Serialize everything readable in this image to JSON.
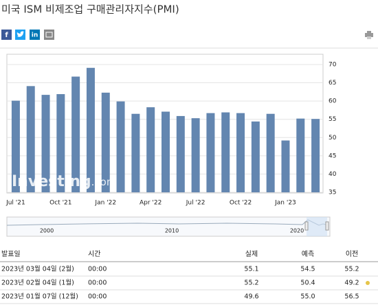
{
  "header": {
    "title": "미국 ISM 비제조업 구매관리자지수(PMI)",
    "share": [
      "f",
      "in"
    ]
  },
  "chart_data": {
    "type": "bar",
    "categories": [
      "Jul '21",
      null,
      null,
      "Oct '21",
      null,
      null,
      "Jan '22",
      null,
      null,
      "Apr '22",
      null,
      null,
      "Jul '22",
      null,
      null,
      "Oct '22",
      null,
      null,
      "Jan '23",
      null,
      null
    ],
    "values": [
      60.1,
      64.1,
      61.7,
      61.9,
      66.7,
      69.1,
      62.3,
      59.9,
      56.5,
      58.3,
      57.1,
      55.9,
      55.3,
      56.7,
      56.9,
      56.7,
      54.4,
      56.5,
      49.2,
      55.2,
      55.1
    ],
    "color": "#6386b0",
    "ylim": [
      35,
      72.5
    ],
    "yticks": [
      35,
      40,
      45,
      50,
      55,
      60,
      65,
      70
    ],
    "grid": true,
    "watermark": [
      "Investing",
      ".com"
    ],
    "navigator_labels": [
      "2000",
      "2010",
      "2020"
    ]
  },
  "table": {
    "header": [
      "발표일",
      "시간",
      "실제",
      "예측",
      "이전"
    ],
    "rows": [
      [
        "2023년 03월 04일 (2월)",
        "00:00",
        "55.1",
        "54.5",
        "55.2"
      ],
      [
        "2023년 02월 04일 (1월)",
        "00:00",
        "55.2",
        "50.4",
        "49.2"
      ],
      [
        "2023년 01월 07일 (12월)",
        "00:00",
        "49.6",
        "55.0",
        "56.5"
      ]
    ]
  }
}
